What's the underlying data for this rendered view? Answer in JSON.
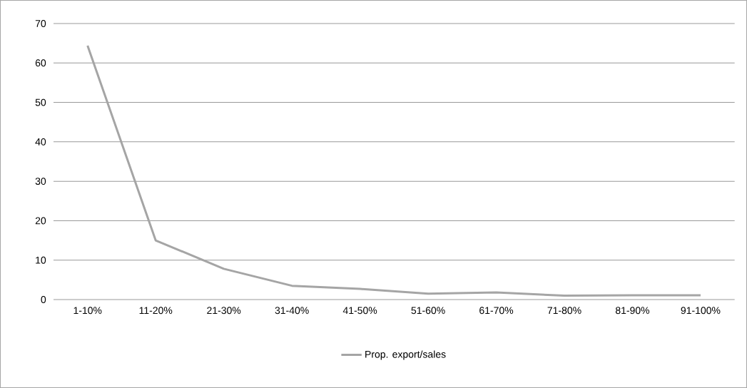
{
  "chart_data": {
    "type": "line",
    "categories": [
      "1-10%",
      "11-20%",
      "21-30%",
      "31-40%",
      "41-50%",
      "51-60%",
      "61-70%",
      "71-80%",
      "81-90%",
      "91-100%"
    ],
    "series": [
      {
        "name": "Prop. export/sales",
        "color": "#a5a5a5",
        "values": [
          64.4,
          15.0,
          7.8,
          3.5,
          2.7,
          1.5,
          1.8,
          1.0,
          1.1,
          1.1
        ]
      }
    ],
    "ylim": [
      0,
      70
    ],
    "yticks": [
      0,
      10,
      20,
      30,
      40,
      50,
      60,
      70
    ],
    "grid": "y",
    "legend": "bottom"
  }
}
